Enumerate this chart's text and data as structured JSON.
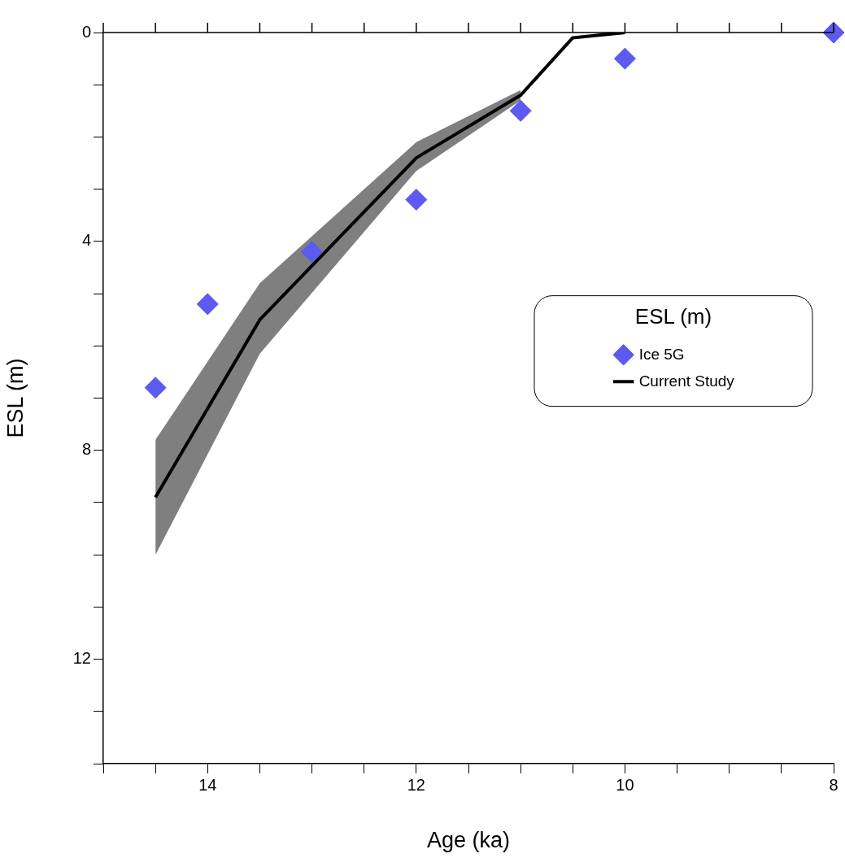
{
  "chart_data": {
    "type": "scatter",
    "xlabel": "Age (ka)",
    "ylabel": "ESL (m)",
    "legend_title": "ESL (m)",
    "legend": "right",
    "grid": false,
    "xlim": [
      15,
      8
    ],
    "ylim": [
      14,
      0
    ],
    "xticks": [
      {
        "value": 15,
        "label": null
      },
      {
        "value": 14.5,
        "label": null
      },
      14,
      {
        "value": 13.5,
        "label": null
      },
      {
        "value": 13,
        "label": null
      },
      {
        "value": 12.5,
        "label": null
      },
      12,
      {
        "value": 11.5,
        "label": null
      },
      {
        "value": 11,
        "label": null
      },
      {
        "value": 10.5,
        "label": null
      },
      10,
      {
        "value": 9.5,
        "label": null
      },
      {
        "value": 9,
        "label": null
      },
      {
        "value": 8.5,
        "label": null
      },
      8
    ],
    "yticks": [
      0,
      {
        "value": 1,
        "label": null
      },
      {
        "value": 2,
        "label": null
      },
      {
        "value": 3,
        "label": null
      },
      4,
      {
        "value": 5,
        "label": null
      },
      {
        "value": 6,
        "label": null
      },
      {
        "value": 7,
        "label": null
      },
      8,
      {
        "value": 9,
        "label": null
      },
      {
        "value": 10,
        "label": null
      },
      {
        "value": 11,
        "label": null
      },
      12,
      {
        "value": 13,
        "label": null
      },
      {
        "value": 14,
        "label": null
      }
    ],
    "series": [
      {
        "name": "Ice 5G",
        "marker": "diamond",
        "color": "#5b5bf0",
        "x": [
          14.5,
          14,
          13,
          12,
          11,
          10,
          8
        ],
        "values": [
          6.8,
          5.2,
          4.2,
          3.2,
          1.5,
          0.5,
          0
        ]
      },
      {
        "name": "Current Study",
        "type": "line",
        "marker": "none",
        "line_style": "solid",
        "color": "#000000",
        "x": [
          14.5,
          13.5,
          12,
          11,
          10.5,
          10
        ],
        "values": [
          8.9,
          5.5,
          2.4,
          1.2,
          0.1,
          0
        ],
        "lower": [
          10.0,
          6.15,
          2.65,
          1.3,
          null,
          null
        ],
        "upper": [
          7.8,
          4.8,
          2.1,
          1.1,
          null,
          null
        ]
      }
    ]
  }
}
